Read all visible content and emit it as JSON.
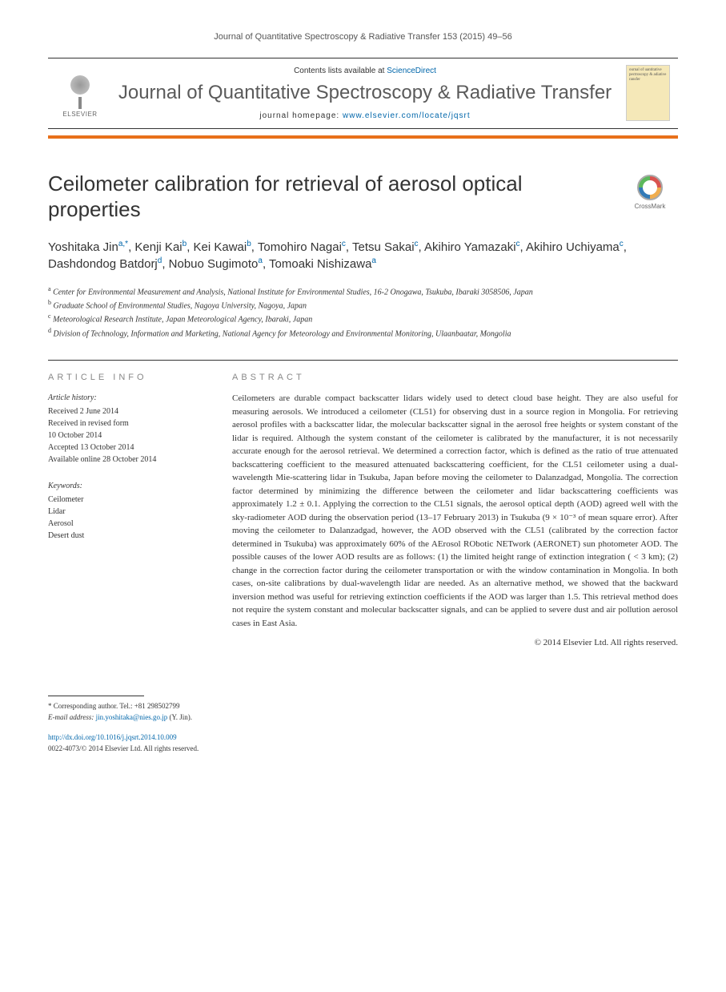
{
  "running_header": "Journal of Quantitative Spectroscopy & Radiative Transfer 153 (2015) 49–56",
  "masthead": {
    "contents_prefix": "Contents lists available at ",
    "contents_link": "ScienceDirect",
    "journal_name": "Journal of Quantitative Spectroscopy & Radiative Transfer",
    "homepage_prefix": "journal homepage: ",
    "homepage_url": "www.elsevier.com/locate/jqsrt",
    "publisher": "ELSEVIER",
    "cover_text": "ournal of uantitative pectroscopy & adiative ransfer"
  },
  "colors": {
    "orange_bar": "#e8701a",
    "link": "#0066aa",
    "title_gray": "#5a5a5a",
    "section_heading": "#888888"
  },
  "article": {
    "title": "Ceilometer calibration for retrieval of aerosol optical properties",
    "crossmark_label": "CrossMark",
    "authors_html": "Yoshitaka Jin<sup>a,*</sup>, Kenji Kai<sup>b</sup>, Kei Kawai<sup>b</sup>, Tomohiro Nagai<sup>c</sup>, Tetsu Sakai<sup>c</sup>, Akihiro Yamazaki<sup>c</sup>, Akihiro Uchiyama<sup>c</sup>, Dashdondog Batdorj<sup>d</sup>, Nobuo Sugimoto<sup>a</sup>, Tomoaki Nishizawa<sup>a</sup>",
    "affiliations": [
      {
        "sup": "a",
        "text": "Center for Environmental Measurement and Analysis, National Institute for Environmental Studies, 16-2 Onogawa, Tsukuba, Ibaraki 3058506, Japan"
      },
      {
        "sup": "b",
        "text": "Graduate School of Environmental Studies, Nagoya University, Nagoya, Japan"
      },
      {
        "sup": "c",
        "text": "Meteorological Research Institute, Japan Meteorological Agency, Ibaraki, Japan"
      },
      {
        "sup": "d",
        "text": "Division of Technology, Information and Marketing, National Agency for Meteorology and Environmental Monitoring, Ulaanbaatar, Mongolia"
      }
    ]
  },
  "article_info": {
    "heading": "article info",
    "history_heading": "Article history:",
    "history": [
      "Received 2 June 2014",
      "Received in revised form",
      "10 October 2014",
      "Accepted 13 October 2014",
      "Available online 28 October 2014"
    ],
    "keywords_heading": "Keywords:",
    "keywords": [
      "Ceilometer",
      "Lidar",
      "Aerosol",
      "Desert dust"
    ]
  },
  "abstract": {
    "heading": "abstract",
    "text": "Ceilometers are durable compact backscatter lidars widely used to detect cloud base height. They are also useful for measuring aerosols. We introduced a ceilometer (CL51) for observing dust in a source region in Mongolia. For retrieving aerosol profiles with a backscatter lidar, the molecular backscatter signal in the aerosol free heights or system constant of the lidar is required. Although the system constant of the ceilometer is calibrated by the manufacturer, it is not necessarily accurate enough for the aerosol retrieval. We determined a correction factor, which is defined as the ratio of true attenuated backscattering coefficient to the measured attenuated backscattering coefficient, for the CL51 ceilometer using a dual-wavelength Mie-scattering lidar in Tsukuba, Japan before moving the ceilometer to Dalanzadgad, Mongolia. The correction factor determined by minimizing the difference between the ceilometer and lidar backscattering coefficients was approximately 1.2 ± 0.1. Applying the correction to the CL51 signals, the aerosol optical depth (AOD) agreed well with the sky-radiometer AOD during the observation period (13–17 February 2013) in Tsukuba (9 × 10⁻³ of mean square error). After moving the ceilometer to Dalanzadgad, however, the AOD observed with the CL51 (calibrated by the correction factor determined in Tsukuba) was approximately 60% of the AErosol RObotic NETwork (AERONET) sun photometer AOD. The possible causes of the lower AOD results are as follows: (1) the limited height range of extinction integration ( < 3 km); (2) change in the correction factor during the ceilometer transportation or with the window contamination in Mongolia. In both cases, on-site calibrations by dual-wavelength lidar are needed. As an alternative method, we showed that the backward inversion method was useful for retrieving extinction coefficients if the AOD was larger than 1.5. This retrieval method does not require the system constant and molecular backscatter signals, and can be applied to severe dust and air pollution aerosol cases in East Asia.",
    "copyright": "© 2014 Elsevier Ltd. All rights reserved."
  },
  "footer": {
    "corresponding_prefix": "* Corresponding author. Tel.: ",
    "corresponding_tel": "+81 298502799",
    "email_label": "E-mail address: ",
    "email": "jin.yoshitaka@nies.go.jp",
    "email_name": " (Y. Jin).",
    "doi_url": "http://dx.doi.org/10.1016/j.jqsrt.2014.10.009",
    "issn_line": "0022-4073/© 2014 Elsevier Ltd. All rights reserved."
  }
}
